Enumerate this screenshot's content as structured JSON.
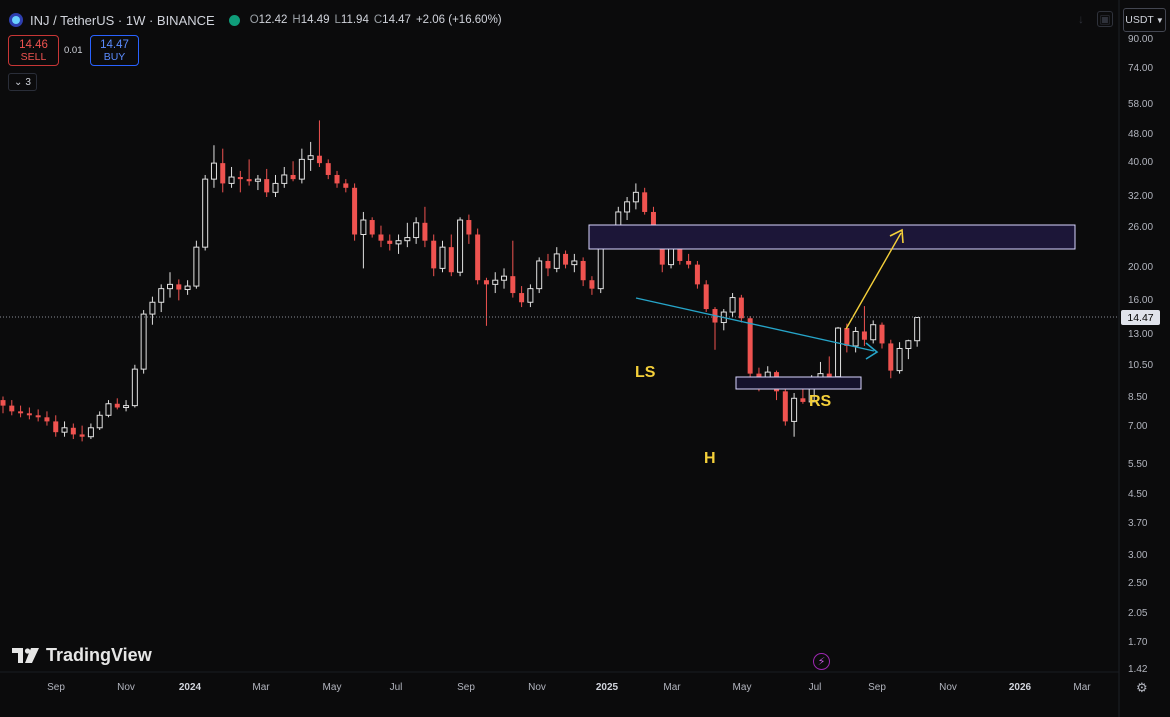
{
  "header": {
    "symbol": "INJ / TetherUS · 1W · BINANCE",
    "open_label": "O",
    "open": "12.42",
    "high_label": "H",
    "high": "14.49",
    "low_label": "L",
    "low": "11.94",
    "close_label": "C",
    "close": "14.47",
    "change": "+2.06 (+16.60%)"
  },
  "trade": {
    "sell_price": "14.46",
    "sell_label": "SELL",
    "spread": "0.01",
    "buy_price": "14.47",
    "buy_label": "BUY"
  },
  "indicator_toggle": "3",
  "currency_menu": "USDT",
  "price_scale": [
    "90.00",
    "74.00",
    "58.00",
    "48.00",
    "40.00",
    "32.00",
    "26.00",
    "20.00",
    "16.00",
    "13.00",
    "10.50",
    "8.50",
    "7.00",
    "5.50",
    "4.50",
    "3.70",
    "3.00",
    "2.50",
    "2.05",
    "1.70",
    "1.42"
  ],
  "time_scale": [
    "Sep",
    "Nov",
    "2024",
    "Mar",
    "May",
    "Jul",
    "Sep",
    "Nov",
    "2025",
    "Mar",
    "May",
    "Jul",
    "Sep",
    "Nov",
    "2026",
    "Mar"
  ],
  "last_price": "14.47",
  "annotations": {
    "left_shoulder": "LS",
    "head": "H",
    "right_shoulder": "RS"
  },
  "branding": "TradingView",
  "colors": {
    "up": "#e0e0e0",
    "down": "#ef5350",
    "trendline": "#26a5c9",
    "projection": "#f5d03a",
    "zone": "#1e1840"
  },
  "chart_data": {
    "type": "candlestick",
    "scale": "log",
    "ylim": [
      1.42,
      95
    ],
    "candles": [
      [
        8.4,
        8.6,
        7.7,
        8.1
      ],
      [
        8.1,
        8.4,
        7.6,
        7.8
      ],
      [
        7.8,
        8.1,
        7.5,
        7.7
      ],
      [
        7.7,
        8.0,
        7.4,
        7.6
      ],
      [
        7.6,
        7.9,
        7.3,
        7.5
      ],
      [
        7.5,
        7.8,
        7.1,
        7.3
      ],
      [
        7.3,
        7.6,
        6.6,
        6.8
      ],
      [
        6.8,
        7.3,
        6.6,
        7.0
      ],
      [
        7.0,
        7.2,
        6.5,
        6.7
      ],
      [
        6.7,
        7.1,
        6.4,
        6.6
      ],
      [
        6.6,
        7.2,
        6.5,
        7.0
      ],
      [
        7.0,
        7.8,
        6.9,
        7.6
      ],
      [
        7.6,
        8.4,
        7.5,
        8.2
      ],
      [
        8.2,
        8.5,
        7.9,
        8.0
      ],
      [
        8.0,
        8.4,
        7.8,
        8.1
      ],
      [
        8.1,
        10.6,
        8.0,
        10.3
      ],
      [
        10.3,
        15.2,
        10.0,
        14.8
      ],
      [
        14.8,
        16.6,
        13.8,
        16.0
      ],
      [
        16.0,
        18.0,
        15.0,
        17.5
      ],
      [
        17.5,
        19.5,
        16.5,
        18.0
      ],
      [
        18.0,
        18.6,
        16.2,
        17.4
      ],
      [
        17.4,
        18.5,
        16.8,
        17.8
      ],
      [
        17.8,
        24.0,
        17.5,
        23.0
      ],
      [
        23.0,
        37.0,
        22.5,
        36.0
      ],
      [
        36.0,
        45.0,
        34.0,
        40.0
      ],
      [
        40.0,
        44.0,
        33.0,
        35.0
      ],
      [
        35.0,
        39.0,
        34.0,
        36.5
      ],
      [
        36.5,
        38.0,
        33.0,
        36.0
      ],
      [
        36.0,
        41.0,
        34.5,
        35.5
      ],
      [
        35.5,
        37.0,
        33.5,
        36.0
      ],
      [
        36.0,
        38.5,
        32.0,
        33.0
      ],
      [
        33.0,
        37.0,
        32.0,
        35.0
      ],
      [
        35.0,
        39.0,
        34.0,
        37.0
      ],
      [
        37.0,
        40.5,
        35.5,
        36.0
      ],
      [
        36.0,
        44.0,
        35.0,
        41.0
      ],
      [
        41.0,
        46.0,
        38.0,
        42.0
      ],
      [
        42.0,
        53.0,
        39.0,
        40.0
      ],
      [
        40.0,
        41.0,
        36.0,
        37.0
      ],
      [
        37.0,
        38.0,
        34.0,
        35.0
      ],
      [
        35.0,
        36.0,
        33.0,
        34.0
      ],
      [
        34.0,
        35.0,
        24.0,
        25.0
      ],
      [
        25.0,
        29.0,
        20.0,
        27.5
      ],
      [
        27.5,
        28.0,
        24.5,
        25.0
      ],
      [
        25.0,
        26.5,
        23.0,
        24.0
      ],
      [
        24.0,
        25.0,
        22.5,
        23.5
      ],
      [
        23.5,
        25.0,
        22.0,
        24.0
      ],
      [
        24.0,
        27.0,
        23.0,
        24.5
      ],
      [
        24.5,
        28.0,
        23.5,
        27.0
      ],
      [
        27.0,
        30.0,
        23.0,
        24.0
      ],
      [
        24.0,
        25.0,
        19.0,
        20.0
      ],
      [
        20.0,
        24.0,
        19.5,
        23.0
      ],
      [
        23.0,
        25.0,
        19.0,
        19.5
      ],
      [
        19.5,
        28.0,
        19.0,
        27.5
      ],
      [
        27.5,
        28.5,
        23.5,
        25.0
      ],
      [
        25.0,
        26.0,
        18.0,
        18.5
      ],
      [
        18.5,
        18.8,
        13.7,
        18.0
      ],
      [
        18.0,
        19.5,
        17.0,
        18.5
      ],
      [
        18.5,
        20.0,
        17.5,
        19.0
      ],
      [
        19.0,
        24.0,
        16.5,
        17.0
      ],
      [
        17.0,
        17.8,
        15.5,
        16.0
      ],
      [
        16.0,
        18.0,
        15.5,
        17.5
      ],
      [
        17.5,
        21.5,
        17.0,
        21.0
      ],
      [
        21.0,
        22.0,
        19.0,
        20.0
      ],
      [
        20.0,
        23.0,
        19.5,
        22.0
      ],
      [
        22.0,
        22.5,
        20.0,
        20.5
      ],
      [
        20.5,
        22.0,
        19.5,
        21.0
      ],
      [
        21.0,
        21.5,
        17.8,
        18.5
      ],
      [
        18.5,
        19.0,
        16.8,
        17.5
      ],
      [
        17.5,
        25.0,
        17.0,
        24.5
      ],
      [
        24.5,
        26.0,
        23.0,
        24.0
      ],
      [
        24.0,
        30.0,
        23.5,
        29.0
      ],
      [
        29.0,
        32.0,
        27.5,
        31.0
      ],
      [
        31.0,
        35.0,
        29.5,
        33.0
      ],
      [
        33.0,
        34.0,
        28.5,
        29.0
      ],
      [
        29.0,
        30.0,
        24.0,
        25.0
      ],
      [
        25.0,
        26.0,
        19.5,
        20.5
      ],
      [
        20.5,
        25.5,
        20.0,
        25.0
      ],
      [
        25.0,
        26.0,
        20.5,
        21.0
      ],
      [
        21.0,
        22.0,
        20.0,
        20.5
      ],
      [
        20.5,
        21.0,
        17.5,
        18.0
      ],
      [
        18.0,
        18.5,
        15.0,
        15.3
      ],
      [
        15.3,
        15.5,
        11.7,
        14.0
      ],
      [
        14.0,
        15.3,
        13.3,
        15.0
      ],
      [
        15.0,
        17.0,
        14.5,
        16.5
      ],
      [
        16.5,
        16.8,
        14.0,
        14.4
      ],
      [
        14.4,
        14.6,
        9.8,
        10.0
      ],
      [
        10.0,
        10.4,
        8.9,
        9.7
      ],
      [
        9.7,
        10.5,
        9.4,
        10.1
      ],
      [
        10.1,
        10.2,
        8.4,
        8.9
      ],
      [
        8.9,
        9.6,
        7.1,
        7.3
      ],
      [
        7.3,
        8.8,
        6.6,
        8.5
      ],
      [
        8.5,
        9.1,
        8.2,
        8.3
      ],
      [
        8.3,
        9.9,
        8.2,
        9.7
      ],
      [
        9.7,
        10.8,
        9.5,
        10.0
      ],
      [
        10.0,
        11.2,
        9.7,
        9.8
      ],
      [
        9.8,
        13.6,
        9.6,
        13.5
      ],
      [
        13.5,
        13.9,
        11.5,
        12.0
      ],
      [
        12.0,
        13.6,
        11.5,
        13.2
      ],
      [
        13.2,
        15.6,
        12.0,
        12.5
      ],
      [
        12.5,
        14.2,
        12.2,
        13.8
      ],
      [
        13.8,
        14.0,
        11.8,
        12.2
      ],
      [
        12.2,
        12.5,
        9.7,
        10.2
      ],
      [
        10.2,
        12.3,
        10.0,
        11.8
      ],
      [
        11.8,
        12.5,
        11.0,
        12.42
      ],
      [
        12.42,
        14.49,
        11.94,
        14.47
      ]
    ]
  }
}
